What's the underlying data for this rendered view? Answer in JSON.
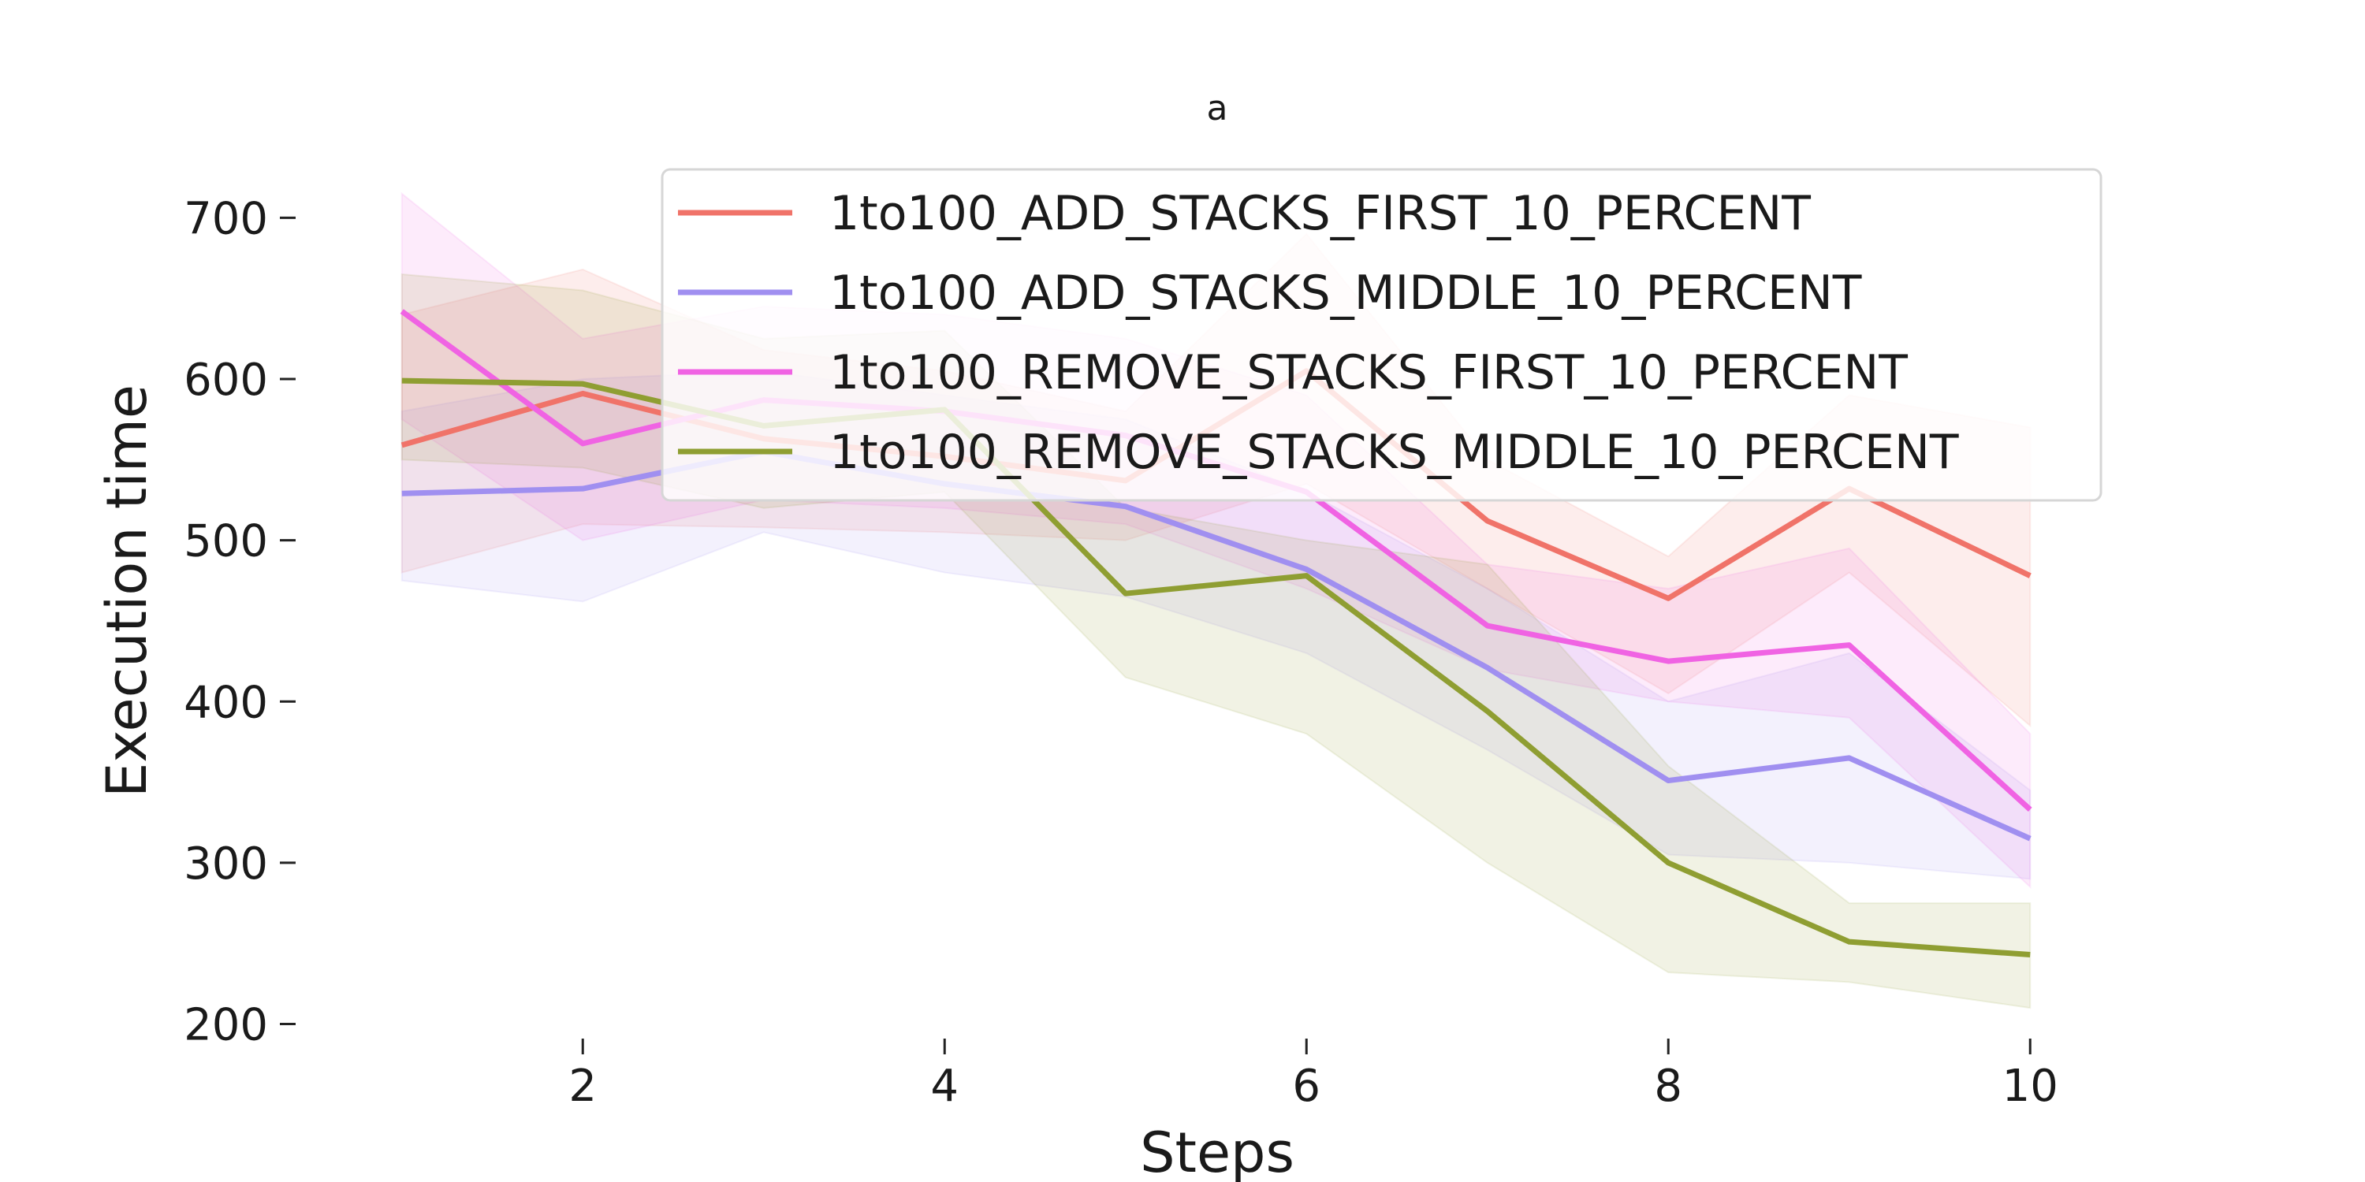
{
  "chart_data": {
    "type": "line",
    "title": "a",
    "xlabel": "Steps",
    "ylabel": "Execution time",
    "x": [
      1,
      2,
      3,
      4,
      5,
      6,
      7,
      8,
      9,
      10
    ],
    "xlim": [
      0.5,
      10.5
    ],
    "ylim": [
      190,
      730
    ],
    "xticks": [
      2,
      4,
      6,
      8,
      10
    ],
    "yticks": [
      200,
      300,
      400,
      500,
      600,
      700
    ],
    "grid": false,
    "legend_position": "top-right",
    "series": [
      {
        "name": "1to100_ADD_STACKS_FIRST_10_PERCENT",
        "color": "#f07369",
        "values": [
          559,
          591,
          563,
          552,
          537,
          605,
          512,
          464,
          532,
          478
        ],
        "lower": [
          480,
          510,
          508,
          505,
          500,
          535,
          470,
          405,
          480,
          385
        ],
        "upper": [
          640,
          668,
          618,
          605,
          580,
          690,
          550,
          490,
          590,
          570
        ]
      },
      {
        "name": "1to100_ADD_STACKS_MIDDLE_10_PERCENT",
        "color": "#a08ff0",
        "values": [
          529,
          532,
          555,
          535,
          521,
          482,
          421,
          351,
          365,
          315
        ],
        "lower": [
          475,
          462,
          505,
          480,
          465,
          430,
          370,
          305,
          300,
          290
        ],
        "upper": [
          580,
          600,
          605,
          590,
          575,
          530,
          470,
          400,
          430,
          345
        ]
      },
      {
        "name": "1to100_REMOVE_STACKS_FIRST_10_PERCENT",
        "color": "#f063e3",
        "values": [
          642,
          560,
          587,
          580,
          565,
          530,
          447,
          425,
          435,
          333
        ],
        "lower": [
          575,
          500,
          525,
          520,
          510,
          470,
          420,
          400,
          390,
          285
        ],
        "upper": [
          715,
          625,
          645,
          640,
          625,
          590,
          485,
          470,
          495,
          380
        ]
      },
      {
        "name": "1to100_REMOVE_STACKS_MIDDLE_10_PERCENT",
        "color": "#8f9e32",
        "values": [
          599,
          597,
          571,
          581,
          467,
          478,
          394,
          300,
          251,
          243
        ],
        "lower": [
          550,
          545,
          520,
          530,
          415,
          380,
          300,
          232,
          226,
          210
        ],
        "upper": [
          665,
          655,
          625,
          630,
          520,
          500,
          485,
          360,
          275,
          275
        ]
      }
    ]
  }
}
